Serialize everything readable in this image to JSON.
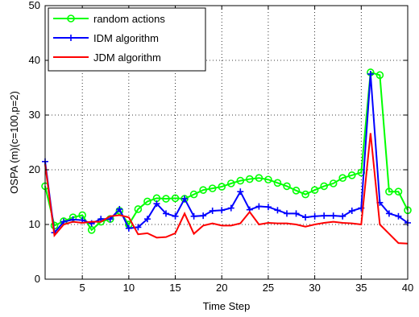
{
  "chart_data": {
    "type": "line",
    "xlabel": "Time Step",
    "ylabel": "OSPA (m)(c=100,p=2)",
    "xlim": [
      1,
      40
    ],
    "ylim": [
      0,
      50
    ],
    "xticks": [
      5,
      10,
      15,
      20,
      25,
      30,
      35,
      40
    ],
    "yticks": [
      0,
      10,
      20,
      30,
      40,
      50
    ],
    "grid": true,
    "legend_position": "top-left",
    "x": [
      1,
      2,
      3,
      4,
      5,
      6,
      7,
      8,
      9,
      10,
      11,
      12,
      13,
      14,
      15,
      16,
      17,
      18,
      19,
      20,
      21,
      22,
      23,
      24,
      25,
      26,
      27,
      28,
      29,
      30,
      31,
      32,
      33,
      34,
      35,
      36,
      37,
      38,
      39,
      40
    ],
    "series": [
      {
        "name": "random actions",
        "color": "#00ff00",
        "marker": "circle",
        "values": [
          17.0,
          9.8,
          10.6,
          11.3,
          11.7,
          9.0,
          10.5,
          11.0,
          12.5,
          10.0,
          12.8,
          14.2,
          14.8,
          14.7,
          14.8,
          14.7,
          15.5,
          16.3,
          16.6,
          16.9,
          17.5,
          18.0,
          18.3,
          18.5,
          18.2,
          17.6,
          17.0,
          16.2,
          15.5,
          16.3,
          17.0,
          17.5,
          18.5,
          19.0,
          19.5,
          37.8,
          37.3,
          16.0,
          16.0,
          12.6
        ]
      },
      {
        "name": "IDM algorithm",
        "color": "#0000ff",
        "marker": "plus",
        "values": [
          21.5,
          8.5,
          10.5,
          10.9,
          10.8,
          10.2,
          11.0,
          11.0,
          12.8,
          9.3,
          9.5,
          11.0,
          13.8,
          12.0,
          11.5,
          14.7,
          11.5,
          11.6,
          12.5,
          12.6,
          13.0,
          16.0,
          12.7,
          13.3,
          13.2,
          12.6,
          12.0,
          12.0,
          11.3,
          11.5,
          11.6,
          11.6,
          11.5,
          12.5,
          13.0,
          37.5,
          14.0,
          12.0,
          11.5,
          10.3
        ]
      },
      {
        "name": "JDM algorithm",
        "color": "#ff0000",
        "marker": "none",
        "values": [
          21.0,
          8.0,
          10.0,
          10.5,
          10.3,
          10.5,
          10.5,
          11.5,
          11.7,
          11.3,
          8.2,
          8.4,
          7.6,
          7.7,
          8.4,
          12.0,
          8.3,
          9.8,
          10.2,
          9.8,
          9.8,
          10.2,
          12.3,
          10.0,
          10.3,
          10.2,
          10.2,
          10.0,
          9.6,
          10.0,
          10.3,
          10.5,
          10.3,
          10.2,
          10.0,
          26.7,
          10.0,
          8.3,
          6.6,
          6.5
        ]
      }
    ]
  }
}
